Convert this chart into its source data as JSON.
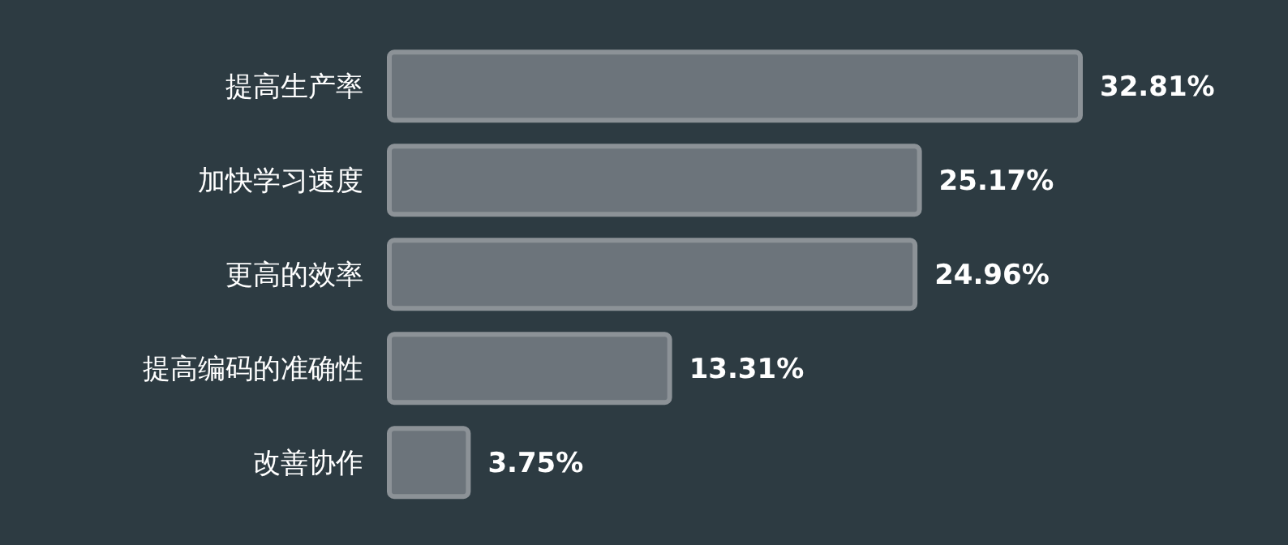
{
  "chart_data": {
    "type": "bar",
    "orientation": "horizontal",
    "categories": [
      "提高生产率",
      "加快学习速度",
      "更高的效率",
      "提高编码的准确性",
      "改善协作"
    ],
    "values": [
      32.81,
      25.17,
      24.96,
      13.31,
      3.75
    ],
    "color": "#6c747b",
    "data_labels": true,
    "value_labels": [
      "32.81%",
      "25.17%",
      "24.96%",
      "13.31%",
      "3.75%"
    ]
  }
}
